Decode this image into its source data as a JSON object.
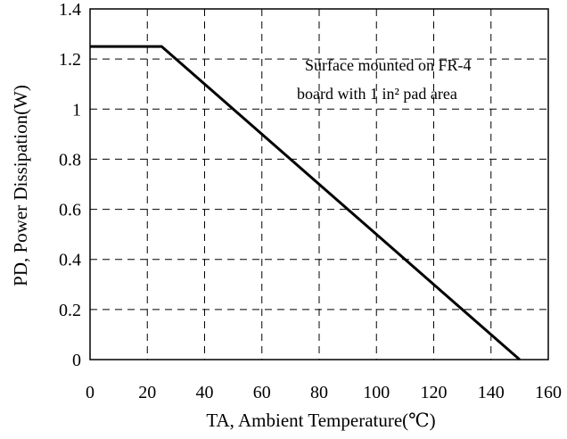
{
  "chart_data": {
    "type": "line",
    "title": "",
    "xlabel": "TA, Ambient Temperature(℃)",
    "ylabel": "PD, Power Dissipation(W)",
    "xlim": [
      0,
      160
    ],
    "ylim": [
      0,
      1.4
    ],
    "xticks": [
      "0",
      "20",
      "40",
      "60",
      "80",
      "100",
      "120",
      "140",
      "160"
    ],
    "yticks": [
      "0",
      "0.2",
      "0.4",
      "0.6",
      "0.8",
      "1",
      "1.2",
      "1.4"
    ],
    "grid": true,
    "grid_style": "dashed",
    "series": [
      {
        "x": [
          0,
          25,
          150
        ],
        "y": [
          1.25,
          1.25,
          0
        ]
      }
    ],
    "annotation": [
      "Surface mounted on FR-4",
      "board with 1 in² pad area"
    ]
  }
}
